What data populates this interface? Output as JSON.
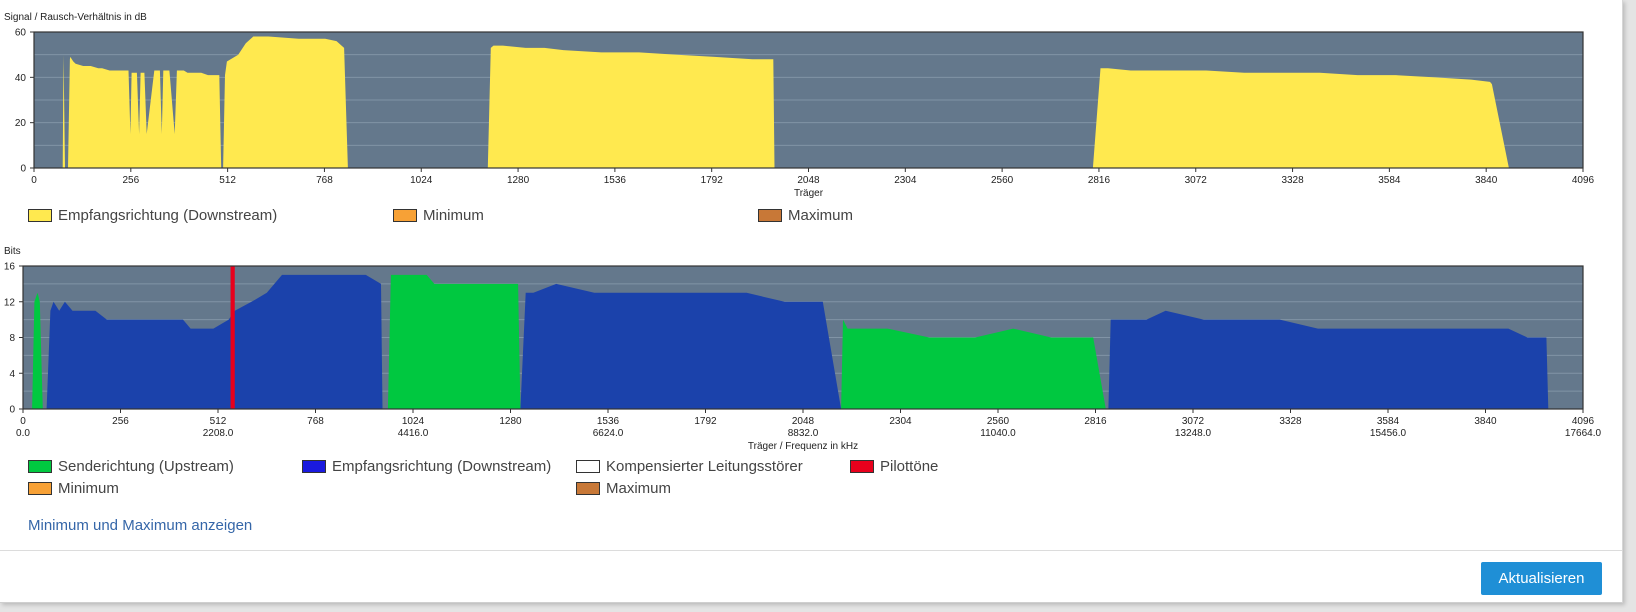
{
  "colors": {
    "plot_bg": "#64788c",
    "snr_fill": "#ffe94f",
    "upstream": "#00c840",
    "downstream": "#1b42ab",
    "pilot": "#e8001c",
    "minimum": "#f7a136",
    "maximum": "#c87837",
    "compensated": "#ffffff"
  },
  "snr_chart": {
    "ylabel": "Signal / Rausch-Verhältnis in dB",
    "xlabel": "Träger",
    "ylim": [
      0,
      60
    ],
    "y_ticks": [
      "0",
      "20",
      "40",
      "60"
    ],
    "x_ticks": [
      "0",
      "256",
      "512",
      "768",
      "1024",
      "1280",
      "1536",
      "1792",
      "2048",
      "2304",
      "2560",
      "2816",
      "3072",
      "3328",
      "3584",
      "3840",
      "4096"
    ],
    "legend": [
      "Empfangsrichtung (Downstream)",
      "Minimum",
      "Maximum"
    ]
  },
  "bits_chart": {
    "ylabel": "Bits",
    "xlabel": "Träger / Frequenz in kHz",
    "ylim": [
      0,
      16
    ],
    "y_ticks": [
      "0",
      "4",
      "8",
      "12",
      "16"
    ],
    "x_ticks": [
      "0",
      "256",
      "512",
      "768",
      "1024",
      "1280",
      "1536",
      "1792",
      "2048",
      "2304",
      "2560",
      "2816",
      "3072",
      "3328",
      "3584",
      "3840",
      "4096"
    ],
    "freq_ticks": [
      "0.0",
      "2208.0",
      "4416.0",
      "6624.0",
      "8832.0",
      "11040.0",
      "13248.0",
      "15456.0",
      "17664.0"
    ],
    "legend": [
      "Senderichtung (Upstream)",
      "Empfangsrichtung (Downstream)",
      "Kompensierter Leitungsstörer",
      "Pilottöne",
      "Minimum",
      "Maximum"
    ]
  },
  "minmax_link": "Minimum und Maximum anzeigen",
  "refresh_button": "Aktualisieren",
  "chart_data": [
    {
      "type": "area",
      "ylabel": "Signal / Rausch-Verhältnis in dB",
      "xlabel": "Träger",
      "xlim": [
        0,
        4096
      ],
      "ylim": [
        0,
        60
      ],
      "grid": true,
      "legend_position": "bottom",
      "series": [
        {
          "name": "Empfangsrichtung (Downstream)",
          "x": [
            0,
            76,
            78,
            82,
            90,
            95,
            96,
            100,
            104,
            110,
            130,
            150,
            170,
            180,
            200,
            220,
            250,
            255,
            258,
            262,
            272,
            278,
            282,
            288,
            292,
            298,
            318,
            326,
            333,
            338,
            342,
            348,
            358,
            372,
            378,
            382,
            386,
            396,
            406,
            420,
            432,
            442,
            460,
            480,
            490,
            495,
            500,
            505,
            510,
            540,
            560,
            580,
            620,
            700,
            770,
            800,
            820,
            830,
            850,
            1200,
            1208,
            1215,
            1240,
            1300,
            1350,
            1400,
            1500,
            1600,
            1700,
            1800,
            1900,
            1950,
            1955,
            1958,
            2800,
            2820,
            2840,
            2900,
            3000,
            3100,
            3200,
            3300,
            3400,
            3500,
            3600,
            3700,
            3800,
            3850,
            3855,
            3900,
            3905,
            3920,
            4096
          ],
          "y": [
            0,
            0,
            50,
            0,
            0,
            48,
            49,
            48,
            47,
            46,
            45,
            45,
            44,
            44,
            43,
            43,
            43,
            15,
            42,
            42,
            42,
            15,
            42,
            42,
            42,
            15,
            43,
            43,
            43,
            15,
            43,
            43,
            43,
            15,
            43,
            43,
            43,
            43,
            42,
            42,
            42,
            42,
            41,
            41,
            41,
            0,
            0,
            41,
            47,
            50,
            55,
            58,
            58,
            57,
            57,
            56,
            53,
            0,
            0,
            0,
            53,
            54,
            54,
            53,
            53,
            52,
            51,
            51,
            50,
            49,
            48,
            48,
            48,
            0,
            0,
            44,
            44,
            43,
            43,
            43,
            42,
            42,
            42,
            41,
            41,
            40,
            39,
            38,
            37,
            0,
            0,
            0,
            0
          ]
        }
      ]
    },
    {
      "type": "area",
      "ylabel": "Bits",
      "xlabel": "Träger / Frequenz in kHz",
      "xlim": [
        0,
        4096
      ],
      "ylim": [
        0,
        16
      ],
      "grid": true,
      "legend_position": "bottom",
      "series": [
        {
          "name": "Senderichtung (Upstream)",
          "x": [
            24,
            30,
            38,
            44,
            52,
            56,
            62,
            958,
            966,
            975,
            1000,
            1060,
            1080,
            1300,
            1306,
            2148,
            2153,
            2165,
            2200,
            2270,
            2380,
            2500,
            2600,
            2700,
            2760,
            2810,
            2843,
            2850
          ],
          "y": [
            0,
            12,
            13,
            12,
            0,
            0,
            0,
            0,
            15,
            15,
            15,
            15,
            14,
            14,
            0,
            0,
            10,
            9,
            9,
            9,
            8,
            8,
            9,
            8,
            8,
            8,
            0,
            0
          ]
        },
        {
          "name": "Empfangsrichtung (Downstream)",
          "x": [
            62,
            72,
            80,
            95,
            110,
            130,
            160,
            190,
            220,
            260,
            300,
            340,
            380,
            420,
            440,
            460,
            480,
            500,
            540,
            556,
            600,
            640,
            680,
            720,
            760,
            820,
            860,
            900,
            940,
            944,
            958,
            1306,
            1320,
            1340,
            1400,
            1500,
            1600,
            1700,
            1800,
            1900,
            2000,
            2080,
            2100,
            2148,
            2850,
            2856,
            2880,
            2950,
            3000,
            3100,
            3200,
            3300,
            3400,
            3500,
            3600,
            3700,
            3800,
            3850,
            3900,
            3950,
            4000,
            4005,
            4096
          ],
          "y": [
            0,
            11,
            12,
            11,
            12,
            11,
            11,
            11,
            10,
            10,
            10,
            10,
            10,
            10,
            9,
            9,
            9,
            9,
            10,
            11,
            12,
            13,
            15,
            15,
            15,
            15,
            15,
            15,
            14,
            0,
            0,
            0,
            13,
            13,
            14,
            13,
            13,
            13,
            13,
            13,
            12,
            12,
            12,
            0,
            0,
            10,
            10,
            10,
            11,
            10,
            10,
            10,
            9,
            9,
            9,
            9,
            9,
            9,
            9,
            8,
            8,
            0,
            0
          ]
        },
        {
          "name": "Pilottöne",
          "x": [
            545,
            556
          ],
          "y": [
            16,
            16
          ]
        }
      ]
    }
  ]
}
